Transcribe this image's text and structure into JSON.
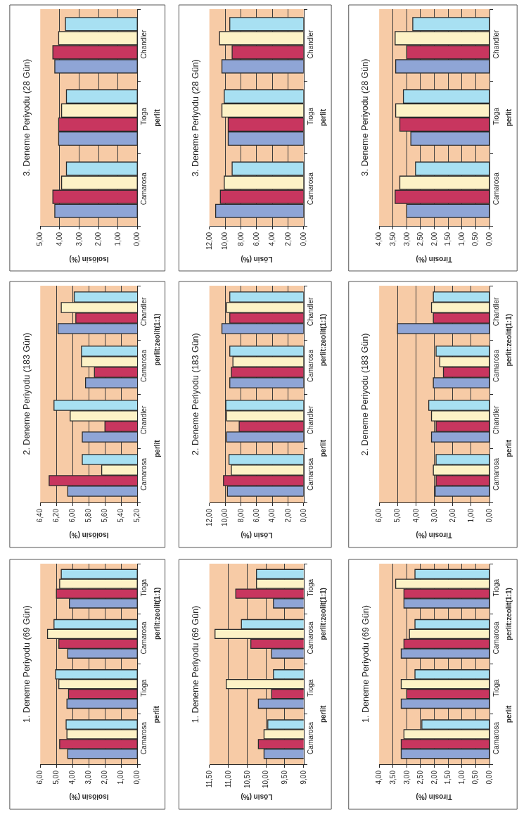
{
  "chart_data": [
    {
      "type": "bar",
      "orientation": "horizontal",
      "title": "3. Deneme Periyodu (28 Gün)",
      "xlabel": "Isolösin (%)",
      "categories": [
        "Chandler",
        "Tioga",
        "Camarosa"
      ],
      "annotations": [
        "perlit"
      ],
      "xlim": [
        5,
        0
      ],
      "xticks": [
        {
          "value": 0,
          "label": "0,00"
        },
        {
          "value": 1,
          "label": "1,00"
        },
        {
          "value": 2,
          "label": "2,00"
        },
        {
          "value": 3,
          "label": "3,00"
        },
        {
          "value": 4,
          "label": "4,00"
        },
        {
          "value": 5,
          "label": "5,00"
        }
      ],
      "grid": "x",
      "series": [
        {
          "color": "#8fa5d6",
          "values": [
            4.25,
            4.05,
            4.25
          ]
        },
        {
          "color": "#c8365f",
          "values": [
            4.35,
            4.05,
            4.35
          ]
        },
        {
          "color": "#fdf2c6",
          "values": [
            4.05,
            3.9,
            3.9
          ]
        },
        {
          "color": "#a8e0f2",
          "values": [
            3.7,
            3.65,
            3.65
          ]
        }
      ]
    },
    {
      "type": "bar",
      "orientation": "horizontal",
      "title": "3. Deneme Periyodu (28 Gün)",
      "xlabel": "Lösin (%)",
      "categories": [
        "Chandler",
        "Tioga",
        "Camarosa"
      ],
      "annotations": [
        "perlit"
      ],
      "xlim": [
        12,
        0
      ],
      "xticks": [
        {
          "value": 0,
          "label": "0,00"
        },
        {
          "value": 2,
          "label": "2,00"
        },
        {
          "value": 4,
          "label": "4,00"
        },
        {
          "value": 6,
          "label": "6,00"
        },
        {
          "value": 8,
          "label": "8,00"
        },
        {
          "value": 10,
          "label": "10,00"
        },
        {
          "value": 12,
          "label": "12,00"
        }
      ],
      "grid": "x",
      "series": [
        {
          "color": "#8fa5d6",
          "values": [
            10.4,
            9.6,
            11.2
          ]
        },
        {
          "color": "#c8365f",
          "values": [
            9.1,
            9.6,
            10.6
          ]
        },
        {
          "color": "#fdf2c6",
          "values": [
            10.7,
            10.4,
            10.1
          ]
        },
        {
          "color": "#a8e0f2",
          "values": [
            9.4,
            10.1,
            9.1
          ]
        }
      ]
    },
    {
      "type": "bar",
      "orientation": "horizontal",
      "title": "3. Deneme Periyodu (28 Gün)",
      "xlabel": "Tirosin (%)",
      "categories": [
        "Chandler",
        "Tioga",
        "Camarosa"
      ],
      "annotations": [
        "perlit"
      ],
      "xlim": [
        4,
        0
      ],
      "xticks": [
        {
          "value": 0,
          "label": "0,00"
        },
        {
          "value": 0.5,
          "label": "0,50"
        },
        {
          "value": 1,
          "label": "1,00"
        },
        {
          "value": 1.5,
          "label": "1,50"
        },
        {
          "value": 2,
          "label": "2,00"
        },
        {
          "value": 2.5,
          "label": "2,50"
        },
        {
          "value": 3,
          "label": "3,00"
        },
        {
          "value": 3.5,
          "label": "3,50"
        },
        {
          "value": 4,
          "label": "4,00"
        }
      ],
      "grid": "x",
      "series": [
        {
          "color": "#8fa5d6",
          "values": [
            3.4,
            2.85,
            3.0
          ]
        },
        {
          "color": "#c8365f",
          "values": [
            3.0,
            3.25,
            3.42
          ]
        },
        {
          "color": "#fdf2c6",
          "values": [
            3.42,
            3.4,
            3.25
          ]
        },
        {
          "color": "#a8e0f2",
          "values": [
            2.78,
            3.12,
            2.68
          ]
        }
      ]
    },
    {
      "type": "bar",
      "orientation": "horizontal",
      "title": "2. Deneme Periyodu (183 Gün)",
      "xlabel": "Isolösin (%)",
      "categories": [
        "Chandler",
        "Camarosa",
        "Chandler",
        "Camarosa"
      ],
      "annotations": [
        "perlit:zeolit(1:1)",
        "perlit"
      ],
      "xlim": [
        6.4,
        5.2
      ],
      "xticks": [
        {
          "value": 5.2,
          "label": "5,20"
        },
        {
          "value": 5.4,
          "label": "5,40"
        },
        {
          "value": 5.6,
          "label": "5,60"
        },
        {
          "value": 5.8,
          "label": "5,80"
        },
        {
          "value": 6.0,
          "label": "6,00"
        },
        {
          "value": 6.2,
          "label": "6,20"
        },
        {
          "value": 6.4,
          "label": "6,40"
        }
      ],
      "grid": "x",
      "series": [
        {
          "color": "#8fa5d6",
          "values": [
            6.18,
            5.84,
            5.88,
            6.06
          ]
        },
        {
          "color": "#c8365f",
          "values": [
            5.96,
            5.73,
            5.6,
            6.29
          ]
        },
        {
          "color": "#fdf2c6",
          "values": [
            6.14,
            5.89,
            6.03,
            5.64
          ]
        },
        {
          "color": "#a8e0f2",
          "values": [
            5.98,
            5.89,
            6.23,
            5.88
          ]
        }
      ]
    },
    {
      "type": "bar",
      "orientation": "horizontal",
      "title": "2. Deneme Periyodu (183 Gün)",
      "xlabel": "Lösin (%)",
      "categories": [
        "Chandler",
        "Camarosa",
        "Chandler",
        "Camarosa"
      ],
      "annotations": [
        "perlit:zeolit(1:1)",
        "perlit"
      ],
      "xlim": [
        12,
        0
      ],
      "xticks": [
        {
          "value": 0,
          "label": "0,00"
        },
        {
          "value": 2,
          "label": "2,00"
        },
        {
          "value": 4,
          "label": "4,00"
        },
        {
          "value": 6,
          "label": "6,00"
        },
        {
          "value": 8,
          "label": "8,00"
        },
        {
          "value": 10,
          "label": "10,00"
        },
        {
          "value": 12,
          "label": "12,00"
        }
      ],
      "grid": "x",
      "series": [
        {
          "color": "#8fa5d6",
          "values": [
            10.4,
            9.4,
            9.8,
            9.7
          ]
        },
        {
          "color": "#c8365f",
          "values": [
            9.4,
            9.2,
            8.2,
            10.2
          ]
        },
        {
          "color": "#fdf2c6",
          "values": [
            9.8,
            9.0,
            9.8,
            9.2
          ]
        },
        {
          "color": "#a8e0f2",
          "values": [
            9.4,
            9.4,
            9.9,
            9.5
          ]
        }
      ]
    },
    {
      "type": "bar",
      "orientation": "horizontal",
      "title": "2. Deneme Periyodu (183 Gün)",
      "xlabel": "Tirosin (%)",
      "categories": [
        "Chandler",
        "Camarosa",
        "Chandler",
        "Camarosa"
      ],
      "annotations": [
        "perlit:zeolit(1:1)",
        "perlit"
      ],
      "xlim": [
        6,
        0
      ],
      "xticks": [
        {
          "value": 0,
          "label": "0,00"
        },
        {
          "value": 1,
          "label": "1,00"
        },
        {
          "value": 2,
          "label": "2,00"
        },
        {
          "value": 3,
          "label": "3,00"
        },
        {
          "value": 4,
          "label": "4,00"
        },
        {
          "value": 5,
          "label": "5,00"
        },
        {
          "value": 6,
          "label": "6,00"
        }
      ],
      "grid": "x",
      "series": [
        {
          "color": "#8fa5d6",
          "values": [
            5.0,
            3.05,
            3.15,
            2.95
          ]
        },
        {
          "color": "#c8365f",
          "values": [
            3.05,
            2.5,
            2.9,
            2.9
          ]
        },
        {
          "color": "#fdf2c6",
          "values": [
            3.15,
            2.7,
            3.15,
            3.05
          ]
        },
        {
          "color": "#a8e0f2",
          "values": [
            3.05,
            2.9,
            3.3,
            2.9
          ]
        }
      ]
    },
    {
      "type": "bar",
      "orientation": "horizontal",
      "title": "1. Deneme Periyodu (69 Gün)",
      "xlabel": "Isolösin (%)",
      "categories": [
        "Tioga",
        "Camarosa",
        "Tioga",
        "Camarosa"
      ],
      "annotations": [
        "perlit:zeolit(1:1)",
        "perlit"
      ],
      "xlim": [
        6,
        0
      ],
      "xticks": [
        {
          "value": 0,
          "label": "0,00"
        },
        {
          "value": 1,
          "label": "1,00"
        },
        {
          "value": 2,
          "label": "2,00"
        },
        {
          "value": 3,
          "label": "3,00"
        },
        {
          "value": 4,
          "label": "4,00"
        },
        {
          "value": 5,
          "label": "5,00"
        },
        {
          "value": 6,
          "label": "6,00"
        }
      ],
      "grid": "x",
      "series": [
        {
          "color": "#8fa5d6",
          "values": [
            4.2,
            4.3,
            4.35,
            4.3
          ]
        },
        {
          "color": "#c8365f",
          "values": [
            5.0,
            4.85,
            4.25,
            4.8
          ]
        },
        {
          "color": "#fdf2c6",
          "values": [
            4.8,
            5.55,
            4.85,
            4.35
          ]
        },
        {
          "color": "#a8e0f2",
          "values": [
            4.7,
            5.15,
            5.05,
            4.4
          ]
        }
      ]
    },
    {
      "type": "bar",
      "orientation": "horizontal",
      "title": "1. Deneme Periyodu (69 Gün)",
      "xlabel": "Lösin (%)",
      "categories": [
        "Tioga",
        "Camarosa",
        "Tioga",
        "Camarosa"
      ],
      "annotations": [
        "perlit:zeolit(1:1)",
        "perlit"
      ],
      "xlim": [
        11.5,
        9.0
      ],
      "xticks": [
        {
          "value": 9.0,
          "label": "9,00"
        },
        {
          "value": 9.5,
          "label": "9,50"
        },
        {
          "value": 10.0,
          "label": "10,00"
        },
        {
          "value": 10.5,
          "label": "10,50"
        },
        {
          "value": 11.0,
          "label": "11,00"
        },
        {
          "value": 11.5,
          "label": "11,50"
        }
      ],
      "grid": "x",
      "series": [
        {
          "color": "#8fa5d6",
          "values": [
            9.8,
            9.85,
            10.2,
            10.05
          ]
        },
        {
          "color": "#c8365f",
          "values": [
            10.8,
            10.4,
            9.85,
            10.2
          ]
        },
        {
          "color": "#fdf2c6",
          "values": [
            10.25,
            11.35,
            11.05,
            10.05
          ]
        },
        {
          "color": "#a8e0f2",
          "values": [
            10.25,
            10.65,
            9.8,
            9.95
          ]
        }
      ]
    },
    {
      "type": "bar",
      "orientation": "horizontal",
      "title": "1. Deneme Periyodu (69 Gün)",
      "xlabel": "Tirosin (%)",
      "categories": [
        "Tioga",
        "Camarosa",
        "Tioga",
        "Camarosa"
      ],
      "annotations": [
        "perlit:zeolit(1:1)",
        "perlit"
      ],
      "xlim": [
        4,
        0
      ],
      "xticks": [
        {
          "value": 0,
          "label": "0,00"
        },
        {
          "value": 0.5,
          "label": "0,50"
        },
        {
          "value": 1,
          "label": "1,00"
        },
        {
          "value": 1.5,
          "label": "1,50"
        },
        {
          "value": 2,
          "label": "2,00"
        },
        {
          "value": 2.5,
          "label": "2,50"
        },
        {
          "value": 3,
          "label": "3,00"
        },
        {
          "value": 3.5,
          "label": "3,50"
        },
        {
          "value": 4,
          "label": "4,00"
        }
      ],
      "grid": "x",
      "series": [
        {
          "color": "#8fa5d6",
          "values": [
            3.1,
            3.2,
            3.2,
            3.2
          ]
        },
        {
          "color": "#c8365f",
          "values": [
            3.1,
            3.1,
            3.0,
            3.2
          ]
        },
        {
          "color": "#fdf2c6",
          "values": [
            3.4,
            2.9,
            3.2,
            3.1
          ]
        },
        {
          "color": "#a8e0f2",
          "values": [
            2.7,
            2.7,
            2.7,
            2.45
          ]
        }
      ]
    }
  ]
}
